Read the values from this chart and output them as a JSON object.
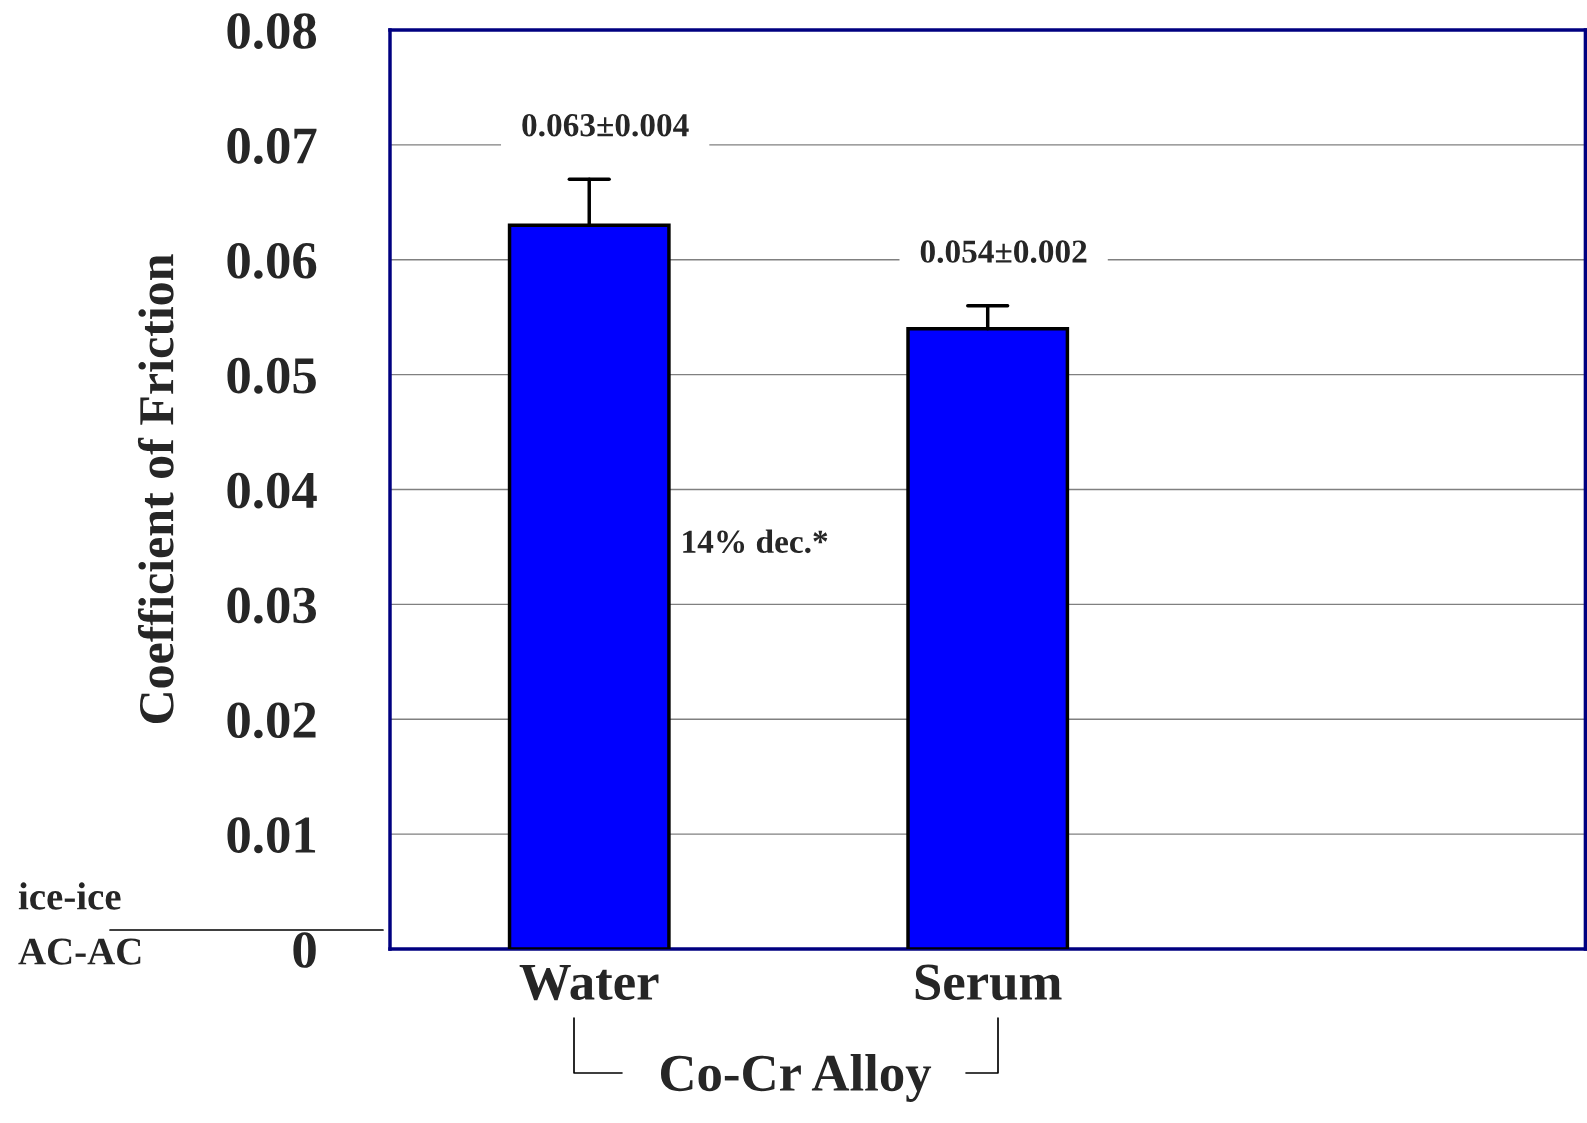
{
  "chart_data": {
    "type": "bar",
    "ylabel": "Coefficient of Friction",
    "xlabel": "Co-Cr Alloy",
    "categories": [
      "Water",
      "Serum"
    ],
    "values": [
      0.063,
      0.054
    ],
    "errors": [
      [
        0.063,
        0.067
      ],
      [
        0.054,
        0.056
      ]
    ],
    "value_labels": [
      "0.063±0.004",
      "0.054±0.002"
    ],
    "color": "#0000ff",
    "ylim": [
      0,
      0.08
    ],
    "yticks": [
      {
        "value": 0,
        "label": "0"
      },
      0.01,
      0.02,
      0.03,
      0.04,
      0.05,
      0.06,
      0.07,
      0.08
    ],
    "grid": "y",
    "annotations": [
      "14% dec.*",
      "ice-ice",
      "AC-AC"
    ]
  }
}
